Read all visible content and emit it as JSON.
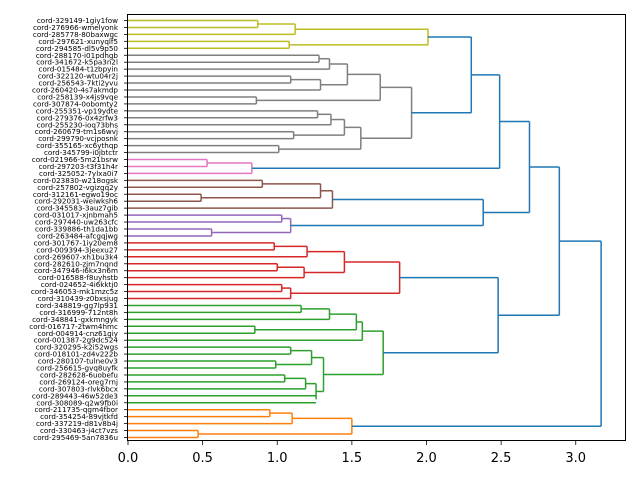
{
  "chart_data": {
    "type": "dendrogram",
    "orientation": "right",
    "title": "",
    "xlabel": "",
    "ylabel": "",
    "xlim": [
      0,
      3.33
    ],
    "xticks": [
      "0.0",
      "0.5",
      "1.0",
      "1.5",
      "2.0",
      "2.5",
      "3.0"
    ],
    "xtick_values": [
      0,
      0.5,
      1.0,
      1.5,
      2.0,
      2.5,
      3.0
    ],
    "grid": false,
    "colors": {
      "yellow": "#bcbd22",
      "gray": "#7f7f7f",
      "pink": "#e377c2",
      "brown": "#8c564b",
      "purple": "#9467bd",
      "red": "#d62728",
      "green": "#2ca02c",
      "orange": "#ff7f0e",
      "link_above": "#1f77b4"
    },
    "leaves": [
      "cord-329149-1giy1fow",
      "cord-276966-wmelyonk",
      "cord-285778-80baxwgc",
      "cord-297621-xunyqlf5",
      "cord-294585-dl5v9p50",
      "cord-288170-i01pdhgb",
      "cord-341672-k5pa3n2l",
      "cord-015484-t1zbpyin",
      "cord-322120-wtu04r2j",
      "cord-256543-7kti2yvu",
      "cord-260420-4s7akmdp",
      "cord-258139-x4js9vqe",
      "cord-307874-0obomty2",
      "cord-255351-vp19ydte",
      "cord-279376-0x4zrfw3",
      "cord-255230-ioq73bhs",
      "cord-260679-tm1s6wvj",
      "cord-299790-vcjposnk",
      "cord-355165-xc6ythqp",
      "cord-345799-i0jbtctr",
      "cord-021966-5m21bsrw",
      "cord-297203-t3f31h4r",
      "cord-325052-7ylxa0i7",
      "cord-023830-w218ogsk",
      "cord-257802-vgizgq2y",
      "cord-312161-egwo19oc",
      "cord-292031-weiwksh6",
      "cord-345583-3auz7gib",
      "cord-031017-xjnbmah5",
      "cord-297440-uw263cfc",
      "cord-339886-th1da1bb",
      "cord-263484-afcgqjwg",
      "cord-301767-1iy20em8",
      "cord-009394-3jeexu27",
      "cord-269607-xh1bu3k4",
      "cord-282610-zjm7nqnd",
      "cord-347946-i6kx3n6m",
      "cord-016588-f8uyhstb",
      "cord-024652-4i6kktj0",
      "cord-346053-mk1mzc5z",
      "cord-310439-z0bxsjug",
      "cord-348819-gg7lp931",
      "cord-316999-712nt8h",
      "cord-348841-gxkmngyk",
      "cord-016717-2twm4hmc",
      "cord-004914-cnz61giy",
      "cord-001387-2g9dc524",
      "cord-320295-k2i52wgs",
      "cord-018101-zd4v222b",
      "cord-280107-tulne0v3",
      "cord-256615-gvq8uyfk",
      "cord-282628-6uobefu",
      "cord-269124-oreg7rnj",
      "cord-307803-rlvk6bcx",
      "cord-289443-46w52de3",
      "cord-308089-q2w9fb0i",
      "cord-211735-qgm4fbor",
      "cord-354254-89vjtkfd",
      "cord-337219-d81v8b4j",
      "cord-330463-j4ct7vzs",
      "cord-295469-5an7836u"
    ],
    "tree": {
      "h": 3.17,
      "c": "link_above",
      "ch": [
        {
          "h": 2.89,
          "c": "link_above",
          "ch": [
            {
              "h": 2.69,
              "c": "link_above",
              "ch": [
                {
                  "h": 2.49,
                  "c": "link_above",
                  "ch": [
                    {
                      "h": 2.3,
                      "c": "link_above",
                      "ch": [
                        {
                          "h": 2.01,
                          "c": "yellow",
                          "ch": [
                            {
                              "h": 1.12,
                              "c": "yellow",
                              "ch": [
                                {
                                  "h": 0.87,
                                  "c": "yellow",
                                  "ch": [
                                    0,
                                    1
                                  ]
                                },
                                2
                              ]
                            },
                            {
                              "h": 1.08,
                              "c": "yellow",
                              "ch": [
                                3,
                                4
                              ]
                            }
                          ]
                        },
                        {
                          "h": 1.9,
                          "c": "gray",
                          "ch": [
                            {
                              "h": 1.69,
                              "c": "gray",
                              "ch": [
                                {
                                  "h": 1.47,
                                  "c": "gray",
                                  "ch": [
                                    {
                                      "h": 1.35,
                                      "c": "gray",
                                      "ch": [
                                        {
                                          "h": 1.28,
                                          "c": "gray",
                                          "ch": [
                                            5,
                                            6
                                          ]
                                        },
                                        7
                                      ]
                                    },
                                    {
                                      "h": 1.29,
                                      "c": "gray",
                                      "ch": [
                                        {
                                          "h": 1.09,
                                          "c": "gray",
                                          "ch": [
                                            8,
                                            9
                                          ]
                                        },
                                        10
                                      ]
                                    }
                                  ]
                                },
                                {
                                  "h": 0.86,
                                  "c": "gray",
                                  "ch": [
                                    11,
                                    12
                                  ]
                                }
                              ]
                            },
                            {
                              "h": 1.56,
                              "c": "gray",
                              "ch": [
                                {
                                  "h": 1.45,
                                  "c": "gray",
                                  "ch": [
                                    {
                                      "h": 1.36,
                                      "c": "gray",
                                      "ch": [
                                        {
                                          "h": 1.27,
                                          "c": "gray",
                                          "ch": [
                                            13,
                                            14
                                          ]
                                        },
                                        15
                                      ]
                                    },
                                    {
                                      "h": 1.11,
                                      "c": "gray",
                                      "ch": [
                                        16,
                                        17
                                      ]
                                    }
                                  ]
                                },
                                {
                                  "h": 1.01,
                                  "c": "gray",
                                  "ch": [
                                    18,
                                    19
                                  ]
                                }
                              ]
                            }
                          ]
                        }
                      ]
                    },
                    {
                      "h": 0.83,
                      "c": "pink",
                      "ch": [
                        {
                          "h": 0.53,
                          "c": "pink",
                          "ch": [
                            20,
                            21
                          ]
                        },
                        22
                      ]
                    }
                  ]
                },
                {
                  "h": 2.38,
                  "c": "link_above",
                  "ch": [
                    {
                      "h": 1.37,
                      "c": "brown",
                      "ch": [
                        {
                          "h": 1.29,
                          "c": "brown",
                          "ch": [
                            {
                              "h": 0.9,
                              "c": "brown",
                              "ch": [
                                23,
                                24
                              ]
                            },
                            {
                              "h": 0.49,
                              "c": "brown",
                              "ch": [
                                25,
                                26
                              ]
                            }
                          ]
                        },
                        27
                      ]
                    },
                    {
                      "h": 1.09,
                      "c": "purple",
                      "ch": [
                        {
                          "h": 1.03,
                          "c": "purple",
                          "ch": [
                            28,
                            29
                          ]
                        },
                        {
                          "h": 0.56,
                          "c": "purple",
                          "ch": [
                            30,
                            31
                          ]
                        }
                      ]
                    }
                  ]
                }
              ]
            },
            {
              "h": 2.48,
              "c": "link_above",
              "ch": [
                {
                  "h": 1.82,
                  "c": "red",
                  "ch": [
                    {
                      "h": 1.45,
                      "c": "red",
                      "ch": [
                        {
                          "h": 1.2,
                          "c": "red",
                          "ch": [
                            {
                              "h": 0.98,
                              "c": "red",
                              "ch": [
                                32,
                                33
                              ]
                            },
                            34
                          ]
                        },
                        {
                          "h": 1.18,
                          "c": "red",
                          "ch": [
                            {
                              "h": 1.0,
                              "c": "red",
                              "ch": [
                                35,
                                36
                              ]
                            },
                            37
                          ]
                        }
                      ]
                    },
                    {
                      "h": 1.09,
                      "c": "red",
                      "ch": [
                        {
                          "h": 1.03,
                          "c": "red",
                          "ch": [
                            38,
                            39
                          ]
                        },
                        40
                      ]
                    }
                  ]
                },
                {
                  "h": 1.71,
                  "c": "green",
                  "ch": [
                    {
                      "h": 1.57,
                      "c": "green",
                      "ch": [
                        {
                          "h": 1.53,
                          "c": "green",
                          "ch": [
                            {
                              "h": 1.35,
                              "c": "green",
                              "ch": [
                                {
                                  "h": 1.16,
                                  "c": "green",
                                  "ch": [
                                    41,
                                    42
                                  ]
                                },
                                43
                              ]
                            },
                            {
                              "h": 0.85,
                              "c": "green",
                              "ch": [
                                44,
                                45
                              ]
                            }
                          ]
                        },
                        46
                      ]
                    },
                    {
                      "h": 1.23,
                      "c": "green",
                      "ch": [
                        {
                          "h": 1.09,
                          "c": "green",
                          "ch": [
                            47,
                            48
                          ]
                        },
                        {
                          "h": 0.99,
                          "c": "green",
                          "ch": [
                            49,
                            50
                          ]
                        }
                      ]
                    }
                  ]
                }
              ]
            }
          ]
        },
        {
          "h": 1.5,
          "c": "orange",
          "ch": [
            {
              "h": 1.1,
              "c": "orange",
              "ch": [
                {
                  "h": 0.95,
                  "c": "orange",
                  "ch": [
                    56,
                    57
                  ]
                },
                58
              ]
            },
            {
              "h": 0.47,
              "c": "orange",
              "ch": [
                59,
                60
              ]
            }
          ]
        }
      ]
    },
    "extra_green": {
      "h": 1.26,
      "c": "green",
      "ch": [
        {
          "h": 1.05,
          "c": "green",
          "ch": [
            51,
            52
          ]
        },
        53
      ]
    },
    "green_leaves_54_55": {
      "h": 0.0,
      "c": "green",
      "ch": [
        54,
        55
      ]
    }
  }
}
